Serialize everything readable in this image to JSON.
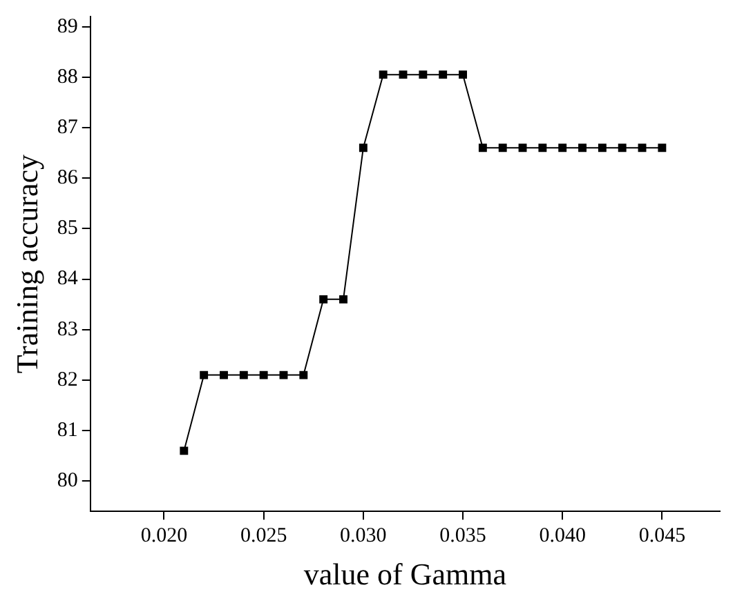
{
  "chart_data": {
    "type": "line",
    "xlabel": "value of Gamma",
    "ylabel": "Training accuracy",
    "x": [
      0.021,
      0.022,
      0.023,
      0.024,
      0.025,
      0.026,
      0.027,
      0.028,
      0.029,
      0.03,
      0.031,
      0.032,
      0.033,
      0.034,
      0.035,
      0.036,
      0.037,
      0.038,
      0.039,
      0.04,
      0.041,
      0.042,
      0.043,
      0.044,
      0.045
    ],
    "series": [
      {
        "color": "#000000",
        "values": [
          80.6,
          82.1,
          82.1,
          82.1,
          82.1,
          82.1,
          82.1,
          83.6,
          83.6,
          86.6,
          88.05,
          88.05,
          88.05,
          88.05,
          88.05,
          86.6,
          86.6,
          86.6,
          86.6,
          86.6,
          86.6,
          86.6,
          86.6,
          86.6,
          86.6
        ]
      }
    ],
    "xlim": [
      0.0163,
      0.0479
    ],
    "ylim": [
      79.4,
      89.2
    ],
    "xticks": [
      {
        "value": 0.02,
        "label": "0.020"
      },
      {
        "value": 0.025,
        "label": "0.025"
      },
      {
        "value": 0.03,
        "label": "0.030"
      },
      {
        "value": 0.035,
        "label": "0.035"
      },
      {
        "value": 0.04,
        "label": "0.040"
      },
      {
        "value": 0.045,
        "label": "0.045"
      }
    ],
    "yticks": [
      80,
      81,
      82,
      83,
      84,
      85,
      86,
      87,
      88,
      89
    ],
    "grid": false,
    "legend": false,
    "marker": "square",
    "line_style": "solid"
  }
}
